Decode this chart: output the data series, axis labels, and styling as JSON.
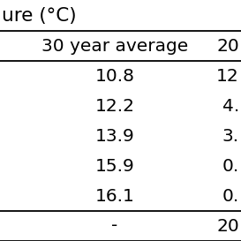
{
  "title_partial": "ure (°C)",
  "col1_header": "30 year average",
  "col2_header": "20",
  "rows": [
    [
      "10.8",
      "12"
    ],
    [
      "12.2",
      "4."
    ],
    [
      "13.9",
      "3."
    ],
    [
      "15.9",
      "0."
    ],
    [
      "16.1",
      "0."
    ]
  ],
  "footer": [
    "-",
    "20"
  ],
  "bg_color": "#ffffff",
  "text_color": "#000000",
  "font_size": 14.5,
  "header_font_size": 14.5,
  "title_font_size": 15.5,
  "line_width": 1.3
}
